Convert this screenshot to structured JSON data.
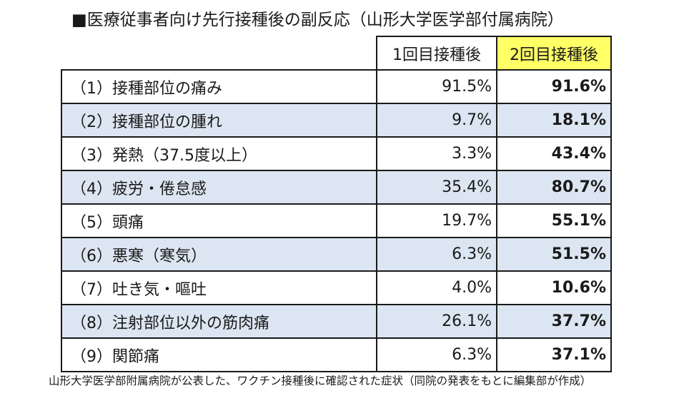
{
  "title": "■医療従事者向け先行接種後の副反応（山形大学医学部付属病院）",
  "table": {
    "headers": [
      "1回目接種後",
      "2回目接種後"
    ],
    "rows": [
      {
        "label": "（1）接種部位の痛み",
        "first": "91.5%",
        "second": "91.6%"
      },
      {
        "label": "（2）接種部位の腫れ",
        "first": "9.7%",
        "second": "18.1%"
      },
      {
        "label": "（3）発熱（37.5度以上）",
        "first": "3.3%",
        "second": "43.4%"
      },
      {
        "label": "（4）疲労・倦怠感",
        "first": "35.4%",
        "second": "80.7%"
      },
      {
        "label": "（5）頭痛",
        "first": "19.7%",
        "second": "55.1%"
      },
      {
        "label": "（6）悪寒（寒気）",
        "first": "6.3%",
        "second": "51.5%"
      },
      {
        "label": "（7）吐き気・嘔吐",
        "first": "4.0%",
        "second": "10.6%"
      },
      {
        "label": "（8）注射部位以外の筋肉痛",
        "first": "26.1%",
        "second": "37.7%"
      },
      {
        "label": "（9）関節痛",
        "first": "6.3%",
        "second": "37.1%"
      }
    ]
  },
  "caption": "山形大学医学部附属病院が公表した、ワクチン接種後に確認された症状（同院の発表をもとに編集部が作成）",
  "colors": {
    "header_highlight": "#ffff66",
    "row_shade": "#dce6f2",
    "border": "#1a1a1a"
  }
}
